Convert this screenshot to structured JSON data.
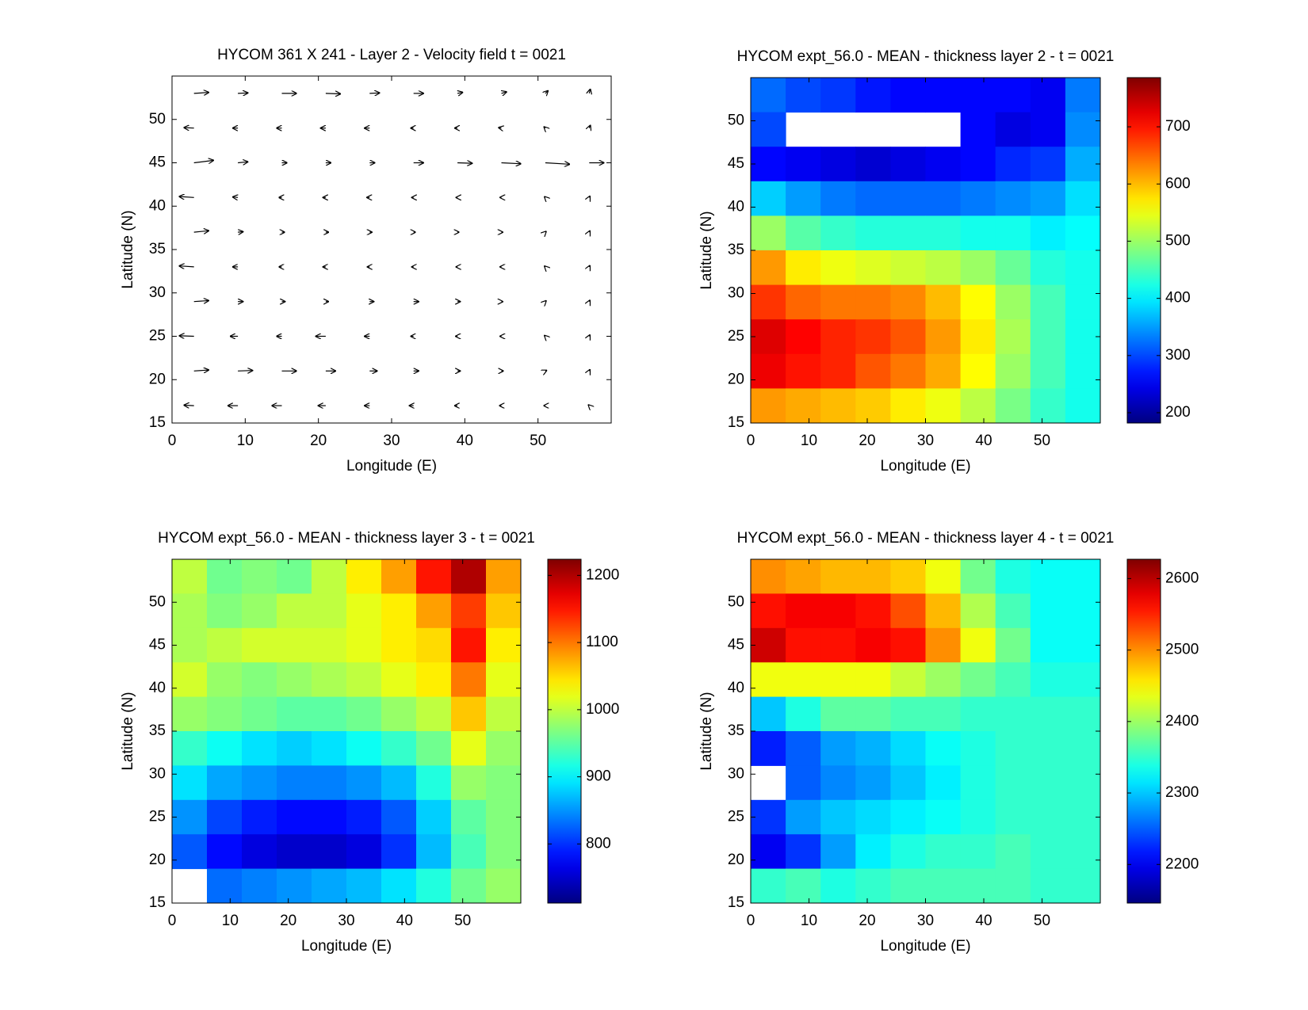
{
  "chart_data": [
    {
      "type": "quiver",
      "title": "HYCOM 361 X 241 - Layer 2 - Velocity field  t = 0021",
      "xlabel": "Longitude (E)",
      "ylabel": "Latitude (N)",
      "xlim": [
        0,
        60
      ],
      "ylim": [
        15,
        55
      ],
      "xticks": [
        0,
        10,
        20,
        30,
        40,
        50
      ],
      "yticks": [
        15,
        20,
        25,
        30,
        35,
        40,
        45,
        50
      ],
      "x": [
        3,
        9,
        15,
        21,
        27,
        33,
        39,
        45,
        51,
        57
      ],
      "y": [
        53,
        49,
        45,
        41,
        37,
        33,
        29,
        25,
        21,
        17
      ],
      "color": "#000000",
      "u": [
        [
          0.3,
          0.2,
          0.3,
          0.3,
          0.2,
          0.2,
          0.1,
          0.1,
          0.05,
          0.02
        ],
        [
          -0.2,
          -0.1,
          -0.1,
          -0.1,
          -0.1,
          -0.05,
          -0.05,
          -0.05,
          -0.02,
          0.02
        ],
        [
          0.4,
          0.2,
          0.1,
          0.1,
          0.1,
          0.2,
          0.3,
          0.4,
          0.5,
          0.3
        ],
        [
          -0.3,
          -0.1,
          -0.05,
          -0.05,
          -0.05,
          -0.03,
          -0.02,
          -0.02,
          -0.01,
          0.01
        ],
        [
          0.3,
          0.1,
          0.05,
          0.05,
          0.04,
          0.03,
          0.02,
          0.02,
          0.01,
          0.01
        ],
        [
          -0.3,
          -0.1,
          -0.05,
          -0.05,
          -0.04,
          -0.03,
          -0.02,
          -0.02,
          -0.01,
          0.01
        ],
        [
          0.3,
          0.1,
          0.06,
          0.05,
          0.08,
          0.1,
          0.05,
          0.02,
          0.01,
          0.01
        ],
        [
          -0.3,
          -0.15,
          -0.1,
          -0.2,
          -0.1,
          -0.05,
          -0.03,
          -0.02,
          -0.01,
          0.01
        ],
        [
          0.3,
          0.3,
          0.3,
          0.2,
          0.15,
          0.1,
          0.05,
          0.03,
          0.02,
          0.01
        ],
        [
          -0.2,
          -0.2,
          -0.2,
          -0.15,
          -0.1,
          -0.08,
          -0.05,
          -0.03,
          -0.02,
          -0.01
        ]
      ],
      "v": [
        [
          0.02,
          0.01,
          0,
          -0.01,
          0.01,
          0,
          0.02,
          0.03,
          0.05,
          0.08
        ],
        [
          0.01,
          0,
          0,
          0,
          0,
          0,
          0,
          0.01,
          0.02,
          0.05
        ],
        [
          0.05,
          0.02,
          0,
          0,
          0,
          0,
          -0.01,
          -0.02,
          -0.03,
          0
        ],
        [
          0.02,
          0.01,
          0,
          0,
          0,
          0,
          0,
          0,
          0.01,
          0.02
        ],
        [
          0.03,
          0.01,
          0,
          0,
          0,
          0,
          0,
          0,
          0.01,
          0.02
        ],
        [
          0.02,
          0,
          0,
          0,
          0,
          0,
          0,
          0,
          0.01,
          0.02
        ],
        [
          0.02,
          0,
          0,
          0,
          0,
          0,
          0,
          0,
          0.01,
          0.02
        ],
        [
          0.01,
          0,
          0,
          0,
          0,
          0,
          0,
          0,
          0.01,
          0.02
        ],
        [
          0.02,
          0.01,
          0,
          0,
          0,
          0,
          0,
          0,
          0.01,
          0.02
        ],
        [
          0.01,
          0,
          0,
          0,
          0,
          0,
          0,
          0,
          0,
          0.01
        ]
      ]
    },
    {
      "type": "contour",
      "title": "HYCOM expt_56.0 - MEAN - thickness layer 2 - t = 0021",
      "xlabel": "Longitude (E)",
      "ylabel": "Latitude (N)",
      "colormap": "jet",
      "xlim": [
        0,
        60
      ],
      "ylim": [
        15,
        55
      ],
      "xticks": [
        0,
        10,
        20,
        30,
        40,
        50
      ],
      "yticks": [
        15,
        20,
        25,
        30,
        35,
        40,
        45,
        50
      ],
      "clim": [
        182,
        786
      ],
      "cticks": [
        200,
        300,
        400,
        500,
        600,
        700
      ],
      "x": [
        3,
        9,
        15,
        21,
        27,
        33,
        39,
        45,
        51,
        57
      ],
      "y": [
        53,
        49,
        45,
        41,
        37,
        33,
        29,
        25,
        21,
        17
      ],
      "z": [
        [
          320,
          300,
          290,
          270,
          260,
          260,
          260,
          260,
          250,
          330
        ],
        [
          300,
          null,
          null,
          null,
          null,
          null,
          260,
          240,
          250,
          340
        ],
        [
          260,
          250,
          240,
          230,
          240,
          250,
          260,
          280,
          290,
          360
        ],
        [
          380,
          350,
          330,
          320,
          320,
          320,
          330,
          340,
          350,
          390
        ],
        [
          500,
          460,
          440,
          430,
          430,
          430,
          420,
          420,
          400,
          410
        ],
        [
          620,
          570,
          550,
          540,
          530,
          520,
          500,
          470,
          430,
          420
        ],
        [
          680,
          650,
          640,
          640,
          630,
          600,
          560,
          500,
          450,
          420
        ],
        [
          730,
          710,
          690,
          680,
          660,
          620,
          570,
          510,
          450,
          420
        ],
        [
          720,
          700,
          690,
          660,
          640,
          610,
          560,
          500,
          450,
          420
        ],
        [
          620,
          610,
          600,
          590,
          570,
          550,
          520,
          480,
          440,
          420
        ]
      ]
    },
    {
      "type": "contour",
      "title": "HYCOM expt_56.0 - MEAN - thickness layer 3 - t = 0021",
      "xlabel": "Longitude (E)",
      "ylabel": "Latitude (N)",
      "colormap": "jet",
      "xlim": [
        0,
        60
      ],
      "ylim": [
        15,
        55
      ],
      "xticks": [
        0,
        10,
        20,
        30,
        40,
        50
      ],
      "yticks": [
        15,
        20,
        25,
        30,
        35,
        40,
        45,
        50
      ],
      "clim": [
        712,
        1224
      ],
      "cticks": [
        800,
        900,
        1000,
        1100,
        1200
      ],
      "x": [
        3,
        9,
        15,
        21,
        27,
        33,
        39,
        45,
        51,
        57
      ],
      "y": [
        53,
        49,
        45,
        41,
        37,
        33,
        29,
        25,
        21,
        17
      ],
      "z": [
        [
          1000,
          960,
          970,
          960,
          1000,
          1040,
          1080,
          1150,
          1200,
          1080
        ],
        [
          990,
          970,
          980,
          1000,
          1000,
          1020,
          1040,
          1080,
          1130,
          1060
        ],
        [
          990,
          1000,
          1010,
          1010,
          1010,
          1020,
          1040,
          1050,
          1150,
          1040
        ],
        [
          1010,
          980,
          970,
          980,
          990,
          1000,
          1020,
          1040,
          1100,
          1020
        ],
        [
          980,
          970,
          960,
          950,
          950,
          960,
          980,
          1000,
          1060,
          1000
        ],
        [
          930,
          910,
          890,
          880,
          890,
          910,
          930,
          960,
          1020,
          980
        ],
        [
          890,
          860,
          850,
          840,
          840,
          850,
          870,
          920,
          980,
          970
        ],
        [
          850,
          810,
          790,
          780,
          780,
          790,
          820,
          880,
          950,
          970
        ],
        [
          820,
          780,
          760,
          750,
          750,
          760,
          800,
          870,
          940,
          970
        ],
        [
          null,
          830,
          840,
          850,
          860,
          870,
          890,
          920,
          960,
          980
        ]
      ]
    },
    {
      "type": "contour",
      "title": "HYCOM expt_56.0 - MEAN - thickness layer 4 - t = 0021",
      "xlabel": "Longitude (E)",
      "ylabel": "Latitude (N)",
      "colormap": "jet",
      "xlim": [
        0,
        60
      ],
      "ylim": [
        15,
        55
      ],
      "xticks": [
        0,
        10,
        20,
        30,
        40,
        50
      ],
      "yticks": [
        15,
        20,
        25,
        30,
        35,
        40,
        45,
        50
      ],
      "clim": [
        2146,
        2627
      ],
      "cticks": [
        2200,
        2300,
        2400,
        2500,
        2600
      ],
      "x": [
        3,
        9,
        15,
        21,
        27,
        33,
        39,
        45,
        51,
        57
      ],
      "y": [
        53,
        49,
        45,
        41,
        37,
        33,
        29,
        25,
        21,
        17
      ],
      "z": [
        [
          2500,
          2490,
          2480,
          2480,
          2470,
          2440,
          2380,
          2340,
          2330,
          2330
        ],
        [
          2560,
          2570,
          2570,
          2560,
          2530,
          2480,
          2410,
          2360,
          2330,
          2330
        ],
        [
          2590,
          2560,
          2560,
          2570,
          2560,
          2500,
          2440,
          2380,
          2330,
          2330
        ],
        [
          2440,
          2440,
          2440,
          2440,
          2420,
          2400,
          2380,
          2360,
          2340,
          2340
        ],
        [
          2300,
          2340,
          2370,
          2370,
          2360,
          2360,
          2350,
          2350,
          2350,
          2350
        ],
        [
          2220,
          2250,
          2280,
          2290,
          2310,
          2330,
          2340,
          2350,
          2350,
          2350
        ],
        [
          null,
          2250,
          2270,
          2280,
          2300,
          2320,
          2340,
          2350,
          2350,
          2350
        ],
        [
          2230,
          2280,
          2300,
          2310,
          2320,
          2330,
          2340,
          2350,
          2350,
          2350
        ],
        [
          2200,
          2230,
          2280,
          2320,
          2340,
          2350,
          2350,
          2360,
          2350,
          2350
        ],
        [
          2350,
          2360,
          2340,
          2350,
          2360,
          2360,
          2360,
          2360,
          2350,
          2350
        ]
      ]
    }
  ]
}
